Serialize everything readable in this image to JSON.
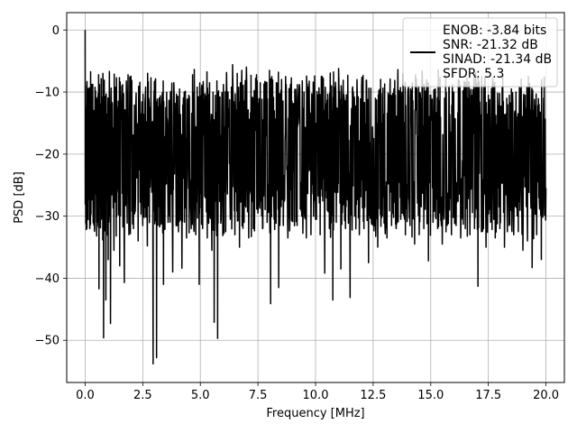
{
  "chart_data": {
    "type": "line",
    "title": "",
    "xlabel": "Frequency [MHz]",
    "ylabel": "PSD [dB]",
    "xlim": [
      -0.8,
      20.8
    ],
    "ylim": [
      -56.8,
      2.8
    ],
    "xticks": [
      0.0,
      2.5,
      5.0,
      7.5,
      10.0,
      12.5,
      15.0,
      17.5,
      20.0
    ],
    "xtick_labels": [
      "0.0",
      "2.5",
      "5.0",
      "7.5",
      "10.0",
      "12.5",
      "15.0",
      "17.5",
      "20.0"
    ],
    "yticks": [
      0,
      -10,
      -20,
      -30,
      -40,
      -50
    ],
    "ytick_labels": [
      "0",
      "−10",
      "−20",
      "−30",
      "−40",
      "−50"
    ],
    "grid": true,
    "legend": {
      "placement": "top-right",
      "lines": [
        "ENOB: -3.84 bits",
        "SNR: -21.32 dB",
        "SINAD: -21.34 dB",
        "SFDR: 5.3"
      ]
    },
    "series": [
      {
        "color": "#000000",
        "x_range": [
          0,
          20
        ],
        "points": [
          [
            0.0,
            0.0
          ],
          [
            0.04,
            -25.0
          ],
          [
            0.08,
            -8.3
          ],
          [
            0.12,
            -30.5
          ],
          [
            0.16,
            -14.5
          ],
          [
            0.2,
            -32.0
          ],
          [
            0.26,
            -17.0
          ],
          [
            0.32,
            -24.0
          ],
          [
            0.4,
            -31.2
          ],
          [
            0.46,
            -14.3
          ],
          [
            0.5,
            -33.2
          ],
          [
            0.56,
            -18.0
          ],
          [
            0.6,
            -41.7
          ],
          [
            0.66,
            -12.2
          ],
          [
            0.7,
            -30.5
          ],
          [
            0.76,
            -15.0
          ],
          [
            0.8,
            -49.6
          ],
          [
            0.86,
            -16.5
          ],
          [
            0.9,
            -43.5
          ],
          [
            0.96,
            -15.2
          ],
          [
            1.0,
            -37.0
          ],
          [
            1.06,
            -13.3
          ],
          [
            1.1,
            -47.3
          ],
          [
            1.18,
            -12.0
          ],
          [
            1.25,
            -35.5
          ],
          [
            1.3,
            -18.0
          ],
          [
            1.35,
            -33.2
          ],
          [
            1.4,
            -14.7
          ],
          [
            1.5,
            -38.0
          ],
          [
            1.58,
            -11.8
          ],
          [
            1.7,
            -40.7
          ],
          [
            1.8,
            -13.0
          ],
          [
            1.9,
            -33.0
          ],
          [
            2.0,
            -14.0
          ],
          [
            2.1,
            -32.0
          ],
          [
            2.2,
            -11.7
          ],
          [
            2.3,
            -34.0
          ],
          [
            2.4,
            -13.5
          ],
          [
            2.5,
            -31.5
          ],
          [
            2.6,
            -11.6
          ],
          [
            2.7,
            -34.8
          ],
          [
            2.8,
            -12.5
          ],
          [
            2.95,
            -53.8
          ],
          [
            3.0,
            -12.0
          ],
          [
            3.05,
            -30.0
          ],
          [
            3.1,
            -52.8
          ],
          [
            3.16,
            -12.4
          ],
          [
            3.25,
            -31.5
          ],
          [
            3.35,
            -10.1
          ],
          [
            3.4,
            -41.0
          ],
          [
            3.5,
            -12.5
          ],
          [
            3.6,
            -31.0
          ],
          [
            3.7,
            -10.3
          ],
          [
            3.8,
            -39.0
          ],
          [
            3.9,
            -11.8
          ],
          [
            4.0,
            -31.5
          ],
          [
            4.1,
            -9.5
          ],
          [
            4.2,
            -38.4
          ],
          [
            4.3,
            -10.0
          ],
          [
            4.4,
            -33.5
          ],
          [
            4.5,
            -10.5
          ],
          [
            4.6,
            -32.0
          ],
          [
            4.7,
            -10.1
          ],
          [
            4.8,
            -33.0
          ],
          [
            4.9,
            -11.5
          ],
          [
            4.95,
            -41.0
          ],
          [
            5.0,
            -12.0
          ],
          [
            5.1,
            -32.0
          ],
          [
            5.2,
            -10.3
          ],
          [
            5.3,
            -33.5
          ],
          [
            5.4,
            -8.5
          ],
          [
            5.5,
            -35.5
          ],
          [
            5.55,
            -10.0
          ],
          [
            5.6,
            -47.1
          ],
          [
            5.65,
            -10.5
          ],
          [
            5.7,
            -31.0
          ],
          [
            5.75,
            -49.7
          ],
          [
            5.8,
            -11.0
          ],
          [
            5.9,
            -30.5
          ],
          [
            6.0,
            -8.8
          ],
          [
            6.1,
            -32.5
          ],
          [
            6.2,
            -10.0
          ],
          [
            6.3,
            -30.5
          ],
          [
            6.4,
            -5.6
          ],
          [
            6.5,
            -33.0
          ],
          [
            6.6,
            -7.0
          ],
          [
            6.7,
            -35.0
          ],
          [
            6.8,
            -6.5
          ],
          [
            6.9,
            -31.0
          ],
          [
            7.0,
            -6.0
          ],
          [
            7.1,
            -33.5
          ],
          [
            7.2,
            -7.3
          ],
          [
            7.3,
            -32.0
          ],
          [
            7.4,
            -7.8
          ],
          [
            7.5,
            -29.5
          ],
          [
            7.6,
            -8.5
          ],
          [
            7.7,
            -32.0
          ],
          [
            7.8,
            -8.3
          ],
          [
            7.9,
            -31.0
          ],
          [
            8.0,
            -6.5
          ],
          [
            8.05,
            -44.1
          ],
          [
            8.1,
            -7.5
          ],
          [
            8.2,
            -30.5
          ],
          [
            8.3,
            -8.5
          ],
          [
            8.4,
            -41.5
          ],
          [
            8.5,
            -9.7
          ],
          [
            8.6,
            -31.5
          ],
          [
            8.7,
            -7.5
          ],
          [
            8.8,
            -33.5
          ],
          [
            8.9,
            -9.8
          ],
          [
            9.0,
            -30.0
          ],
          [
            9.1,
            -9.6
          ],
          [
            9.2,
            -31.5
          ],
          [
            9.3,
            -8.8
          ],
          [
            9.4,
            -30.0
          ],
          [
            9.5,
            -10.0
          ],
          [
            9.6,
            -33.5
          ],
          [
            9.7,
            -9.2
          ],
          [
            9.8,
            -33.0
          ],
          [
            9.9,
            -8.4
          ],
          [
            10.0,
            -30.5
          ],
          [
            10.1,
            -10.5
          ],
          [
            10.2,
            -33.0
          ],
          [
            10.3,
            -7.6
          ],
          [
            10.4,
            -39.2
          ],
          [
            10.5,
            -11.3
          ],
          [
            10.6,
            -32.0
          ],
          [
            10.7,
            -9.0
          ],
          [
            10.75,
            -43.5
          ],
          [
            10.8,
            -10.0
          ],
          [
            10.9,
            -31.0
          ],
          [
            11.0,
            -6.2
          ],
          [
            11.1,
            -38.5
          ],
          [
            11.2,
            -8.1
          ],
          [
            11.3,
            -32.0
          ],
          [
            11.4,
            -7.3
          ],
          [
            11.5,
            -43.1
          ],
          [
            11.6,
            -9.5
          ],
          [
            11.7,
            -30.0
          ],
          [
            11.8,
            -8.0
          ],
          [
            11.9,
            -33.0
          ],
          [
            12.0,
            -9.0
          ],
          [
            12.1,
            -32.0
          ],
          [
            12.2,
            -8.1
          ],
          [
            12.3,
            -37.5
          ],
          [
            12.4,
            -9.4
          ],
          [
            12.5,
            -31.5
          ],
          [
            12.6,
            -11.0
          ],
          [
            12.7,
            -35.0
          ],
          [
            12.8,
            -9.5
          ],
          [
            12.9,
            -30.0
          ],
          [
            13.0,
            -8.7
          ],
          [
            13.1,
            -33.5
          ],
          [
            13.2,
            -10.5
          ],
          [
            13.3,
            -31.5
          ],
          [
            13.4,
            -9.5
          ],
          [
            13.5,
            -32.0
          ],
          [
            13.6,
            -9.7
          ],
          [
            13.7,
            -30.5
          ],
          [
            13.8,
            -7.0
          ],
          [
            13.9,
            -33.0
          ],
          [
            14.0,
            -10.5
          ],
          [
            14.1,
            -31.5
          ],
          [
            14.2,
            -8.5
          ],
          [
            14.3,
            -34.5
          ],
          [
            14.4,
            -9.5
          ],
          [
            14.5,
            -33.0
          ],
          [
            14.6,
            -11.0
          ],
          [
            14.7,
            -32.0
          ],
          [
            14.8,
            -9.8
          ],
          [
            14.9,
            -37.2
          ],
          [
            15.0,
            -10.5
          ],
          [
            15.1,
            -31.0
          ],
          [
            15.2,
            -9.5
          ],
          [
            15.3,
            -32.0
          ],
          [
            15.4,
            -7.7
          ],
          [
            15.5,
            -34.5
          ],
          [
            15.6,
            -11.0
          ],
          [
            15.7,
            -30.5
          ],
          [
            15.8,
            -9.0
          ],
          [
            15.9,
            -33.0
          ],
          [
            16.0,
            -10.0
          ],
          [
            16.1,
            -31.5
          ],
          [
            16.2,
            -8.0
          ],
          [
            16.3,
            -33.5
          ],
          [
            16.4,
            -9.8
          ],
          [
            16.5,
            -32.0
          ],
          [
            16.6,
            -11.0
          ],
          [
            16.7,
            -33.0
          ],
          [
            16.8,
            -10.5
          ],
          [
            16.9,
            -32.0
          ],
          [
            17.0,
            -8.6
          ],
          [
            17.05,
            -41.3
          ],
          [
            17.1,
            -10.0
          ],
          [
            17.2,
            -32.5
          ],
          [
            17.3,
            -9.0
          ],
          [
            17.4,
            -35.0
          ],
          [
            17.5,
            -10.5
          ],
          [
            17.6,
            -31.0
          ],
          [
            17.7,
            -8.5
          ],
          [
            17.8,
            -33.5
          ],
          [
            17.9,
            -10.2
          ],
          [
            18.0,
            -32.0
          ],
          [
            18.1,
            -9.2
          ],
          [
            18.2,
            -35.0
          ],
          [
            18.3,
            -11.0
          ],
          [
            18.4,
            -31.5
          ],
          [
            18.5,
            -9.5
          ],
          [
            18.6,
            -33.0
          ],
          [
            18.7,
            -10.0
          ],
          [
            18.8,
            -32.5
          ],
          [
            18.9,
            -9.5
          ],
          [
            19.0,
            -35.5
          ],
          [
            19.1,
            -10.5
          ],
          [
            19.2,
            -34.0
          ],
          [
            19.3,
            -9.8
          ],
          [
            19.4,
            -38.3
          ],
          [
            19.5,
            -11.2
          ],
          [
            19.6,
            -33.0
          ],
          [
            19.7,
            -12.0
          ],
          [
            19.8,
            -37.0
          ],
          [
            19.9,
            -11.0
          ],
          [
            20.0,
            -25.5
          ]
        ]
      }
    ]
  }
}
